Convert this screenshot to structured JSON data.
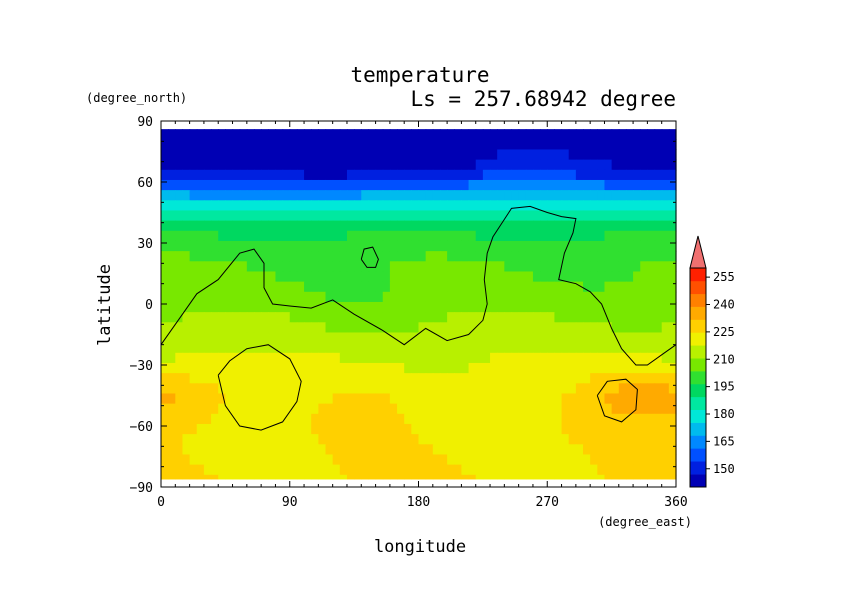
{
  "chart_data": {
    "type": "heatmap",
    "title": "temperature",
    "subtitle": "Ls = 257.68942 degree",
    "xlabel": "longitude",
    "ylabel": "latitude",
    "x_unit": "(degree_east)",
    "y_unit": "(degree_north)",
    "xlim": [
      0,
      360
    ],
    "ylim": [
      -90,
      90
    ],
    "xticks": [
      "0",
      "90",
      "180",
      "270",
      "360"
    ],
    "yticks": [
      "90",
      "60",
      "30",
      "0",
      "−30",
      "−60",
      "−90"
    ],
    "data_lat_range": [
      -86,
      86
    ],
    "colorbar": {
      "min": 140,
      "max": 260,
      "step": 7.5,
      "labels": [
        "150",
        "165",
        "180",
        "195",
        "210",
        "225",
        "240",
        "255"
      ],
      "colors": [
        "#0000b4",
        "#0020e0",
        "#0050ff",
        "#0088ff",
        "#00bbee",
        "#00e8d8",
        "#00e8a0",
        "#00d860",
        "#30e030",
        "#78e800",
        "#b8f000",
        "#f0f000",
        "#ffd000",
        "#ffaa00",
        "#ff8000",
        "#ff5000",
        "#ff2000"
      ],
      "extend_color": "#f07070"
    },
    "latitude_profile": [
      {
        "lat": -86,
        "value": 230
      },
      {
        "lat": -60,
        "value": 229
      },
      {
        "lat": -45,
        "value": 226
      },
      {
        "lat": -30,
        "value": 223
      },
      {
        "lat": -20,
        "value": 220
      },
      {
        "lat": -10,
        "value": 216
      },
      {
        "lat": 0,
        "value": 212
      },
      {
        "lat": 10,
        "value": 209
      },
      {
        "lat": 20,
        "value": 207
      },
      {
        "lat": 30,
        "value": 203
      },
      {
        "lat": 37,
        "value": 197
      },
      {
        "lat": 42,
        "value": 190
      },
      {
        "lat": 48,
        "value": 181
      },
      {
        "lat": 52,
        "value": 174
      },
      {
        "lat": 56,
        "value": 165
      },
      {
        "lat": 60,
        "value": 157
      },
      {
        "lat": 64,
        "value": 149
      },
      {
        "lat": 70,
        "value": 144
      },
      {
        "lat": 86,
        "value": 141
      }
    ],
    "anomalies": [
      {
        "lon": 15,
        "lat": -45,
        "value": 10
      },
      {
        "lon": 330,
        "lat": -45,
        "value": 12
      },
      {
        "lon": 150,
        "lat": -45,
        "value": 4
      },
      {
        "lon": 140,
        "lat": 0,
        "value": -3
      },
      {
        "lon": 250,
        "lat": 62,
        "value": 12
      },
      {
        "lon": 120,
        "lat": 62,
        "value": -5
      }
    ],
    "contours": [
      [
        [
          0,
          -20
        ],
        [
          15,
          -5
        ],
        [
          25,
          5
        ],
        [
          40,
          12
        ],
        [
          55,
          25
        ],
        [
          65,
          27
        ],
        [
          72,
          20
        ],
        [
          72,
          8
        ],
        [
          78,
          0
        ],
        [
          90,
          -1
        ],
        [
          105,
          -2
        ],
        [
          120,
          2
        ],
        [
          135,
          -5
        ],
        [
          155,
          -13
        ],
        [
          170,
          -20
        ],
        [
          185,
          -12
        ],
        [
          200,
          -18
        ],
        [
          215,
          -15
        ],
        [
          225,
          -8
        ],
        [
          228,
          0
        ],
        [
          226,
          12
        ],
        [
          228,
          25
        ],
        [
          232,
          33
        ],
        [
          245,
          47
        ],
        [
          258,
          48
        ],
        [
          270,
          45
        ],
        [
          280,
          43
        ],
        [
          290,
          42
        ],
        [
          288,
          35
        ],
        [
          282,
          25
        ],
        [
          278,
          12
        ],
        [
          290,
          10
        ],
        [
          300,
          6
        ],
        [
          308,
          0
        ],
        [
          315,
          -12
        ],
        [
          322,
          -22
        ],
        [
          332,
          -30
        ],
        [
          340,
          -30
        ],
        [
          350,
          -25
        ],
        [
          360,
          -20
        ]
      ],
      [
        [
          140,
          22
        ],
        [
          142,
          27
        ],
        [
          148,
          28
        ],
        [
          152,
          22
        ],
        [
          150,
          18
        ],
        [
          144,
          18
        ],
        [
          140,
          22
        ]
      ],
      [
        [
          40,
          -35
        ],
        [
          45,
          -50
        ],
        [
          55,
          -60
        ],
        [
          70,
          -62
        ],
        [
          85,
          -58
        ],
        [
          95,
          -48
        ],
        [
          98,
          -38
        ],
        [
          90,
          -27
        ],
        [
          75,
          -20
        ],
        [
          60,
          -22
        ],
        [
          48,
          -28
        ],
        [
          40,
          -35
        ]
      ],
      [
        [
          305,
          -45
        ],
        [
          310,
          -55
        ],
        [
          322,
          -58
        ],
        [
          332,
          -52
        ],
        [
          333,
          -42
        ],
        [
          325,
          -37
        ],
        [
          312,
          -38
        ],
        [
          305,
          -45
        ]
      ]
    ]
  }
}
